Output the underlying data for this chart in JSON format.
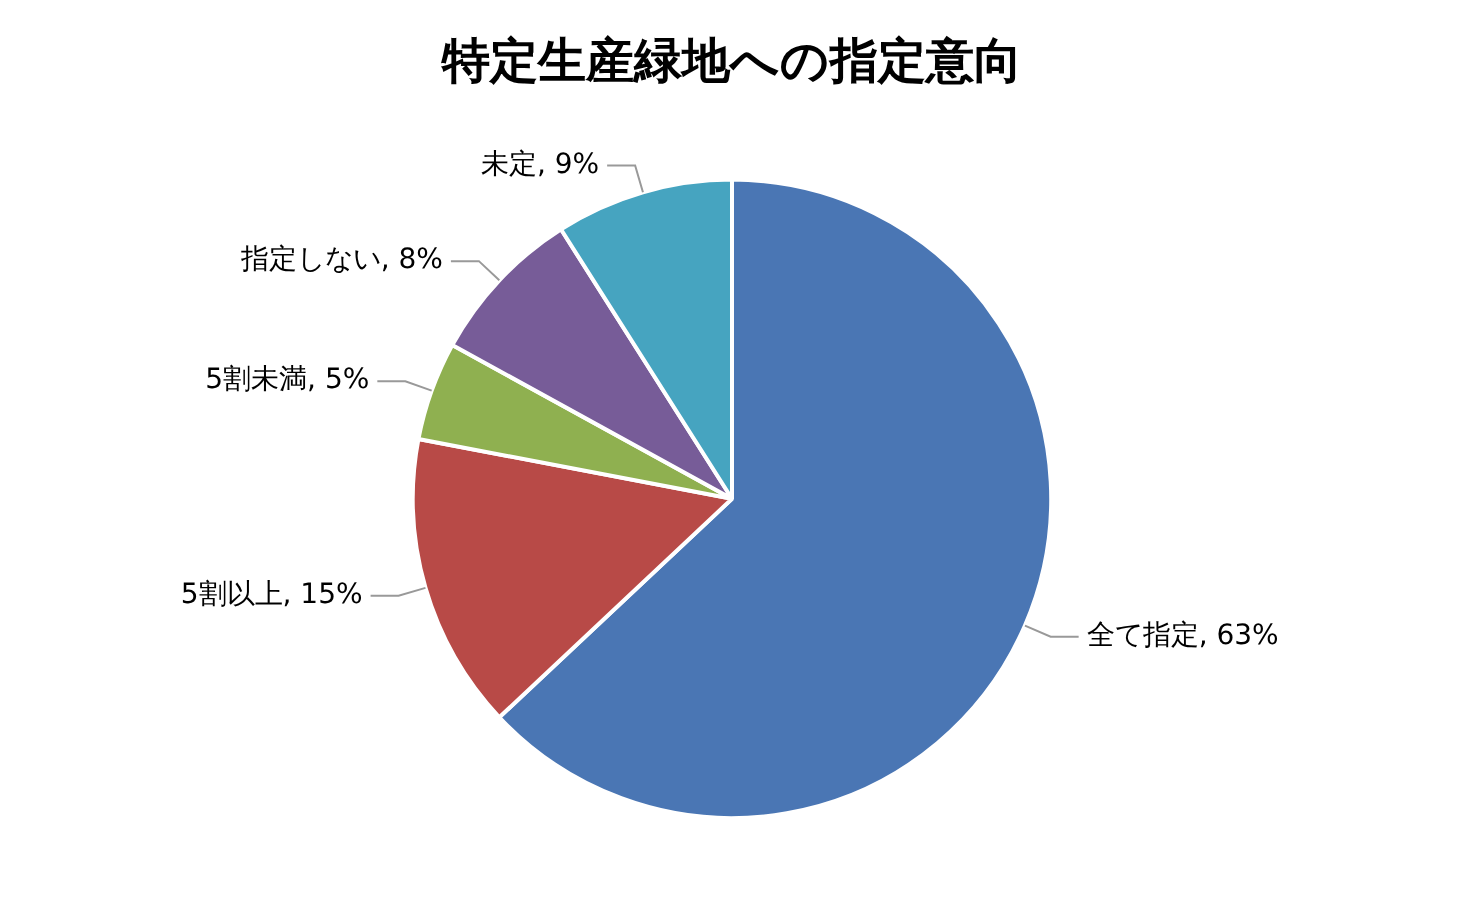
{
  "chart_data": {
    "type": "pie",
    "title": "特定生産緑地への指定意向",
    "categories": [
      "全て指定",
      "5割以上",
      "5割未満",
      "指定しない",
      "未定"
    ],
    "values": [
      63,
      15,
      5,
      8,
      9
    ],
    "value_labels": [
      "63%",
      "15%",
      "5%",
      "8%",
      "9%"
    ],
    "colors": [
      "#4a76b4",
      "#b84a47",
      "#8fb050",
      "#775c98",
      "#46a4c0"
    ],
    "legend": false
  }
}
